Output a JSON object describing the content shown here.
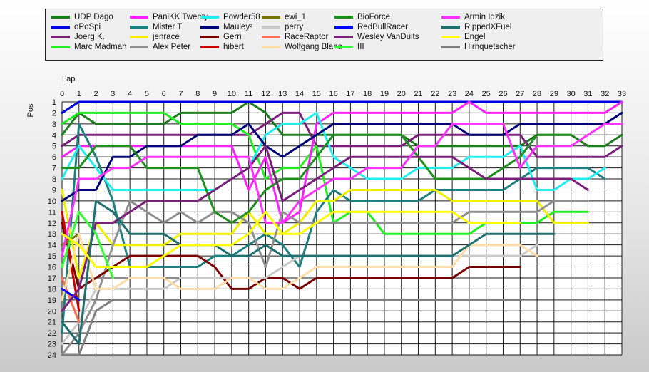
{
  "chart_data": {
    "type": "line",
    "xlabel": "Lap",
    "ylabel": "Pos",
    "x_ticks": [
      0,
      1,
      2,
      3,
      4,
      5,
      6,
      7,
      8,
      9,
      10,
      11,
      12,
      13,
      14,
      15,
      16,
      17,
      18,
      19,
      20,
      21,
      22,
      23,
      24,
      25,
      26,
      27,
      28,
      29,
      30,
      31,
      32,
      33
    ],
    "y_ticks": [
      1,
      2,
      3,
      4,
      5,
      6,
      7,
      8,
      9,
      10,
      11,
      12,
      13,
      14,
      15,
      16,
      17,
      18,
      19,
      20,
      21,
      22,
      23,
      24
    ],
    "xlim": [
      0,
      33
    ],
    "ylim": [
      1,
      24
    ],
    "y_inverted": true,
    "grid": true,
    "legend_position": "top",
    "series": [
      {
        "name": "UDP Dago",
        "color": "#1e7d1e",
        "values": [
          4,
          2,
          3,
          3,
          3,
          3,
          3,
          2,
          2,
          2,
          2,
          1,
          2,
          4,
          4,
          4,
          4,
          4,
          4,
          4,
          4,
          5,
          5,
          5,
          5,
          5,
          5,
          5,
          4,
          4,
          4,
          5,
          5,
          4
        ]
      },
      {
        "name": "oPoSpi",
        "color": "#0000e0",
        "values": [
          2,
          1,
          1,
          1,
          1,
          1,
          1,
          1,
          1,
          1,
          1,
          1,
          1,
          1,
          1,
          1,
          1,
          1,
          1,
          1,
          1,
          1,
          1,
          1,
          1,
          1,
          1,
          1,
          1,
          1,
          1,
          1,
          1,
          1
        ]
      },
      {
        "name": "Joerg K.",
        "color": "#7b1f7b",
        "values": [
          5,
          4,
          4,
          4,
          4,
          4,
          4,
          4,
          4,
          4,
          4,
          4,
          3,
          2,
          2,
          5,
          5,
          5,
          5,
          5,
          5,
          4,
          4,
          4,
          4,
          4,
          4,
          4,
          6,
          6,
          6,
          6,
          6,
          5
        ]
      },
      {
        "name": "Marc Madman",
        "color": "#22ee22",
        "values": [
          3,
          2,
          2,
          2,
          2,
          2,
          2,
          3,
          3,
          3,
          3,
          4,
          8,
          7,
          7,
          5,
          12,
          11,
          11,
          13,
          13,
          13,
          13,
          13,
          13,
          12,
          12,
          12,
          12,
          11,
          11,
          11,
          null,
          null
        ]
      },
      {
        "name": "PaniKK Twenty",
        "color": "#ff22ff",
        "values": [
          6,
          5,
          5,
          5,
          5,
          5,
          5,
          5,
          5,
          5,
          5,
          9,
          6,
          12,
          11,
          3,
          2,
          2,
          2,
          2,
          2,
          2,
          2,
          2,
          1,
          2,
          2,
          2,
          2,
          2,
          2,
          2,
          2,
          1
        ]
      },
      {
        "name": "Mister T",
        "color": "#1f7f7f",
        "values": [
          22,
          3,
          6,
          10,
          16,
          16,
          16,
          16,
          16,
          15,
          15,
          14,
          13,
          14,
          16,
          11,
          9,
          10,
          10,
          10,
          10,
          10,
          9,
          9,
          9,
          9,
          9,
          8,
          7,
          7,
          7,
          7,
          8,
          null
        ]
      },
      {
        "name": "jenrace",
        "color": "#f0f000",
        "values": [
          9,
          17,
          12,
          14,
          14,
          14,
          14,
          13,
          13,
          13,
          13,
          11,
          13,
          13,
          12,
          10,
          10,
          9,
          9,
          9,
          9,
          9,
          9,
          10,
          10,
          10,
          10,
          10,
          10,
          12,
          12,
          12,
          null,
          null
        ]
      },
      {
        "name": "Alex Peter",
        "color": "#909090",
        "values": [
          24,
          22,
          19,
          14,
          10,
          11,
          12,
          11,
          12,
          11,
          11,
          12,
          16,
          11,
          12,
          12,
          12,
          12,
          12,
          12,
          12,
          12,
          12,
          12,
          11,
          11,
          11,
          11,
          11,
          10,
          10,
          10,
          null,
          null
        ]
      },
      {
        "name": "Powder58",
        "color": "#22eeee",
        "values": [
          8,
          5,
          7,
          9,
          9,
          9,
          9,
          9,
          9,
          9,
          8,
          7,
          4,
          3,
          3,
          2,
          6,
          7,
          8,
          8,
          8,
          7,
          7,
          7,
          6,
          6,
          6,
          5,
          9,
          9,
          8,
          8,
          7,
          null
        ]
      },
      {
        "name": "Mauley²",
        "color": "#000077",
        "values": [
          10,
          9,
          9,
          6,
          6,
          5,
          5,
          5,
          4,
          4,
          4,
          3,
          5,
          6,
          5,
          4,
          3,
          3,
          3,
          3,
          3,
          3,
          3,
          3,
          4,
          4,
          4,
          3,
          3,
          3,
          3,
          3,
          3,
          2
        ]
      },
      {
        "name": "Gerri",
        "color": "#7a0000",
        "values": [
          12,
          18,
          17,
          16,
          15,
          15,
          15,
          15,
          15,
          16,
          18,
          18,
          17,
          17,
          18,
          17,
          17,
          17,
          17,
          17,
          17,
          17,
          17,
          17,
          16,
          16,
          16,
          16,
          null,
          null,
          null,
          null,
          null,
          null
        ]
      },
      {
        "name": "hibert",
        "color": "#cc0000",
        "values": [
          11,
          20,
          null,
          null,
          null,
          null,
          null,
          null,
          null,
          null,
          null,
          null,
          null,
          null,
          null,
          null,
          null,
          null,
          null,
          null,
          null,
          null,
          null,
          null,
          null,
          null,
          null,
          null,
          null,
          null,
          null,
          null,
          null,
          null
        ]
      },
      {
        "name": "ewi_1",
        "color": "#777700",
        "values": [
          14,
          13,
          null,
          null,
          null,
          null,
          null,
          null,
          null,
          null,
          null,
          null,
          null,
          null,
          null,
          null,
          null,
          null,
          null,
          null,
          null,
          null,
          null,
          null,
          null,
          null,
          null,
          null,
          null,
          null,
          null,
          null,
          null,
          null
        ]
      },
      {
        "name": "perry",
        "color": "#c9c9c9",
        "values": [
          23,
          21,
          18,
          18,
          18,
          18,
          18,
          17,
          17,
          17,
          17,
          17,
          17,
          16,
          15,
          15,
          15,
          15,
          15,
          15,
          15,
          15,
          15,
          15,
          15,
          15,
          15,
          15,
          14,
          null,
          null,
          null,
          null,
          null
        ]
      },
      {
        "name": "RaceRaptor",
        "color": "#ff7050",
        "values": [
          17,
          21,
          null,
          null,
          null,
          null,
          null,
          null,
          null,
          null,
          null,
          null,
          null,
          null,
          null,
          null,
          null,
          null,
          null,
          null,
          null,
          null,
          null,
          null,
          null,
          null,
          null,
          null,
          null,
          null,
          null,
          null,
          null,
          null
        ]
      },
      {
        "name": "Wolfgang Blaha",
        "color": "#ffdca8",
        "values": [
          19,
          13,
          18,
          18,
          17,
          17,
          17,
          18,
          18,
          18,
          17,
          17,
          18,
          18,
          17,
          16,
          16,
          16,
          16,
          16,
          16,
          16,
          16,
          16,
          14,
          14,
          14,
          14,
          15,
          null,
          null,
          null,
          null,
          null
        ]
      },
      {
        "name": "BioForce",
        "color": "#1f8f1f",
        "values": [
          7,
          7,
          5,
          5,
          5,
          7,
          7,
          7,
          7,
          11,
          12,
          11,
          9,
          8,
          8,
          6,
          4,
          4,
          4,
          4,
          4,
          6,
          8,
          8,
          8,
          8,
          7,
          6,
          4,
          4,
          4,
          null,
          null,
          null
        ]
      },
      {
        "name": "RedBullRacer",
        "color": "#0000ff",
        "values": [
          18,
          19,
          null,
          null,
          null,
          null,
          null,
          null,
          null,
          null,
          null,
          null,
          null,
          null,
          null,
          null,
          null,
          null,
          null,
          null,
          null,
          null,
          null,
          null,
          null,
          null,
          null,
          null,
          null,
          null,
          null,
          null,
          null,
          null
        ]
      },
      {
        "name": "Wesley VanDuits",
        "color": "#7a1f7a",
        "values": [
          20,
          18,
          12,
          12,
          11,
          10,
          10,
          10,
          10,
          9,
          8,
          7,
          5,
          10,
          9,
          8,
          7,
          6,
          6,
          6,
          6,
          6,
          6,
          6,
          7,
          8,
          8,
          8,
          8,
          8,
          8,
          9,
          null,
          null
        ]
      },
      {
        "name": "III",
        "color": "#33ff33",
        "values": [
          16,
          11,
          13,
          17,
          null,
          null,
          null,
          null,
          null,
          null,
          null,
          null,
          null,
          null,
          null,
          null,
          null,
          null,
          null,
          null,
          null,
          null,
          null,
          null,
          null,
          null,
          null,
          null,
          null,
          null,
          null,
          null,
          null,
          null
        ]
      },
      {
        "name": "Armin Idzik",
        "color": "#ff33ff",
        "values": [
          15,
          8,
          8,
          7,
          7,
          6,
          6,
          6,
          6,
          6,
          6,
          6,
          12,
          12,
          10,
          9,
          8,
          8,
          7,
          7,
          7,
          5,
          5,
          3,
          3,
          3,
          3,
          7,
          5,
          5,
          5,
          4,
          3,
          3
        ]
      },
      {
        "name": "RippedXFuel",
        "color": "#1f6f6f",
        "values": [
          21,
          23,
          10,
          11,
          13,
          13,
          13,
          14,
          14,
          14,
          15,
          15,
          14,
          15,
          15,
          15,
          15,
          15,
          15,
          15,
          15,
          15,
          15,
          15,
          14,
          13,
          13,
          13,
          13,
          13,
          null,
          null,
          null,
          null
        ]
      },
      {
        "name": "Engel",
        "color": "#ffff00",
        "values": [
          13,
          14,
          16,
          16,
          16,
          16,
          15,
          14,
          14,
          14,
          14,
          13,
          11,
          13,
          13,
          12,
          11,
          11,
          11,
          11,
          11,
          11,
          11,
          11,
          12,
          12,
          12,
          12,
          null,
          null,
          null,
          null,
          null,
          null
        ]
      },
      {
        "name": "Hirnquetscher",
        "color": "#808080",
        "values": [
          24,
          24,
          20,
          19,
          19,
          19,
          19,
          19,
          19,
          19,
          19,
          19,
          19,
          19,
          19,
          19,
          19,
          19,
          19,
          19,
          19,
          19,
          19,
          19,
          19,
          19,
          19,
          19,
          null,
          null,
          null,
          null,
          null,
          null
        ]
      }
    ]
  }
}
